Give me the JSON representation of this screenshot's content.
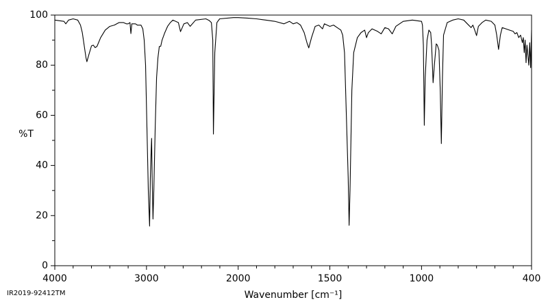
{
  "chart_data": {
    "type": "line",
    "xlabel": "Wavenumber [cm⁻¹]",
    "ylabel": "%T",
    "note": "IR2019-92412TM",
    "xlim": [
      4000,
      400
    ],
    "ylim": [
      0,
      100
    ],
    "x_scale_change": {
      "at": 2000,
      "factor": 2
    },
    "xticks": [
      4000,
      3000,
      2000,
      1500,
      1000,
      400
    ],
    "xminorticks": [
      3800,
      3600,
      3400,
      3200,
      2800,
      2600,
      2400,
      2200,
      1900,
      1800,
      1700,
      1600,
      1400,
      1300,
      1200,
      1100,
      900,
      800,
      700,
      600,
      500
    ],
    "yticks": [
      0,
      20,
      40,
      60,
      80,
      100
    ],
    "yminorticks": [
      10,
      30,
      50,
      70,
      90
    ],
    "series": [
      {
        "color": "#000000",
        "x": [
          4000,
          3900,
          3880,
          3850,
          3800,
          3750,
          3720,
          3700,
          3680,
          3660,
          3650,
          3630,
          3600,
          3580,
          3560,
          3540,
          3500,
          3450,
          3400,
          3350,
          3300,
          3250,
          3220,
          3200,
          3180,
          3170,
          3160,
          3120,
          3100,
          3080,
          3060,
          3040,
          3025,
          3010,
          2995,
          2980,
          2966,
          2958,
          2950,
          2944,
          2938,
          2929,
          2920,
          2905,
          2890,
          2875,
          2860,
          2845,
          2830,
          2800,
          2770,
          2740,
          2712,
          2652,
          2629,
          2592,
          2554,
          2524,
          2464,
          2352,
          2315,
          2292,
          2277,
          2270,
          2255,
          2232,
          2202,
          2052,
          2000,
          1950,
          1900,
          1850,
          1800,
          1750,
          1720,
          1700,
          1680,
          1660,
          1640,
          1625,
          1615,
          1600,
          1580,
          1560,
          1540,
          1530,
          1500,
          1480,
          1460,
          1440,
          1430,
          1420,
          1410,
          1400,
          1395,
          1390,
          1380,
          1370,
          1350,
          1330,
          1310,
          1300,
          1290,
          1270,
          1240,
          1220,
          1200,
          1180,
          1160,
          1140,
          1100,
          1050,
          1000,
          995,
          990,
          985,
          980,
          970,
          960,
          950,
          945,
          937,
          930,
          920,
          914,
          905,
          898,
          892,
          886,
          880,
          860,
          830,
          800,
          770,
          750,
          730,
          720,
          710,
          700,
          690,
          670,
          650,
          620,
          600,
          590,
          580,
          570,
          560,
          540,
          520,
          500,
          490,
          480,
          470,
          460,
          450,
          445,
          440,
          435,
          430,
          425,
          420,
          415,
          410,
          405,
          400
        ],
        "values": [
          98,
          97.5,
          96.5,
          98,
          98.5,
          98,
          96,
          93,
          88,
          83,
          81.4,
          84,
          87.7,
          88,
          87,
          87.5,
          91,
          94,
          95.5,
          96,
          97,
          97,
          96.5,
          96.5,
          97,
          92.6,
          96.5,
          96.5,
          96,
          96,
          96,
          94.5,
          90,
          80,
          55,
          30,
          15.8,
          35,
          45,
          50.8,
          35,
          18.6,
          30,
          55,
          75,
          83,
          87.5,
          87.5,
          90,
          93,
          95.5,
          97,
          98,
          97,
          93.4,
          96.5,
          97,
          95.5,
          98,
          98.5,
          97.8,
          97,
          90,
          52.5,
          85,
          97,
          98.5,
          99,
          99,
          98.8,
          98.5,
          98,
          97.5,
          96.5,
          97.5,
          96.5,
          97,
          96,
          93,
          89,
          86.9,
          91,
          95.5,
          96,
          94.5,
          96.5,
          95.5,
          96,
          95,
          94,
          92,
          85,
          60,
          35,
          16.1,
          30,
          70,
          85,
          91,
          93,
          94,
          91,
          93,
          94.5,
          93.5,
          92.5,
          95,
          94.5,
          92.5,
          95.5,
          97.5,
          98,
          97.5,
          96,
          88,
          56,
          75,
          90,
          94,
          93,
          88,
          73,
          80,
          88.5,
          88,
          86,
          70,
          48.7,
          75,
          92,
          97,
          98,
          98.5,
          98,
          96.5,
          95,
          96,
          94,
          91.8,
          95.5,
          97,
          98,
          97.5,
          96,
          92,
          86.3,
          92,
          95,
          94.5,
          94,
          93.5,
          92.5,
          93,
          91,
          92,
          89,
          91,
          85,
          90,
          81,
          88,
          84,
          80,
          89,
          79,
          94
        ]
      }
    ]
  }
}
